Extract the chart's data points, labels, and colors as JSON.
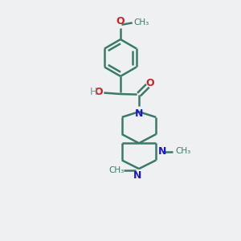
{
  "background_color": "#eef0f2",
  "bond_color": "#3a7a68",
  "bond_width": 1.8,
  "N_color": "#1a1acc",
  "O_color": "#cc2222",
  "H_color": "#7a9a8a",
  "figsize": [
    3.0,
    3.0
  ],
  "dpi": 100,
  "xlim": [
    0,
    10
  ],
  "ylim": [
    0,
    10
  ]
}
